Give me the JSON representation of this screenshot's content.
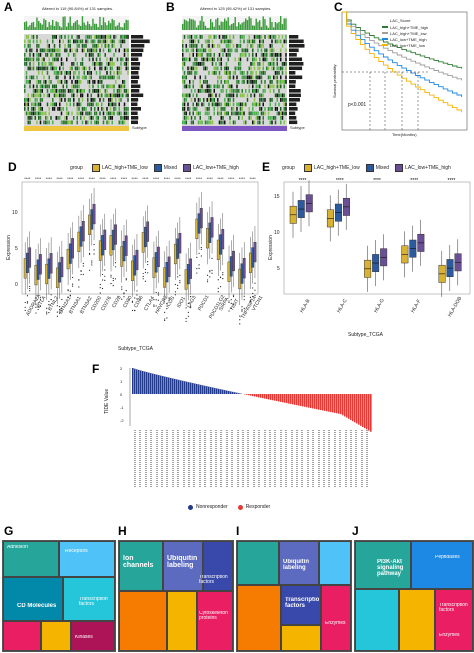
{
  "panels": {
    "A": {
      "label": "A",
      "title": "Altered in 119 (90.84%) of 131 samples.",
      "tmb_max": "13020"
    },
    "B": {
      "label": "B",
      "title": "Altered in 125 (95.42%) of 131 samples.",
      "tmb_max": "2711"
    },
    "C": {
      "label": "C",
      "legend_title": "LAC_Score",
      "legend": [
        "LAC_high+TME_high",
        "LAC_high+TME_low",
        "LAC_low+TME_high",
        "LAC_low+TME_low"
      ],
      "pval": "p<0.001",
      "xlabel": "Time(Months)",
      "ylabel": "Survival probability"
    },
    "D": {
      "label": "D",
      "legend_title": "group",
      "legend": [
        "LAC_high+TME_low",
        "Mixed",
        "LAC_low+TME_high"
      ],
      "ylabel": "Expression",
      "xlabel": "Subtype_TCGA",
      "genes": [
        "ADORA2A",
        "BTLA",
        "BTNL2",
        "BTN2A1",
        "BTN3A1",
        "BTN3A2",
        "CD200",
        "CD276",
        "CD28",
        "CD80",
        "CD86",
        "CTLA4",
        "HAVCR2",
        "ICOS",
        "IDO1",
        "LAG3",
        "PDCD1",
        "PDCD1LG2",
        "SIRPA",
        "TIGIT",
        "TNFRSF14",
        "VTCN1"
      ],
      "yticks": [
        "10",
        "5",
        "0"
      ]
    },
    "E": {
      "label": "E",
      "legend_title": "group",
      "legend": [
        "LAC_high+TME_low",
        "Mixed",
        "LAC_low+TME_high"
      ],
      "ylabel": "Expression",
      "xlabel": "Subtype_TCGA",
      "genes": [
        "HLA-B",
        "HLA-C",
        "HLA-G",
        "HLA-F",
        "HLA-DOB"
      ],
      "yticks": [
        "15",
        "10",
        "5"
      ],
      "sig": "****"
    },
    "F": {
      "label": "F",
      "ylabel": "TIDE Value",
      "legend": [
        "Nonresponder",
        "Responder"
      ],
      "yticks": [
        "2",
        "1",
        "0",
        "-1",
        "-2"
      ]
    },
    "G": {
      "label": "G"
    },
    "H": {
      "label": "H"
    },
    "I": {
      "label": "I"
    },
    "J": {
      "label": "J"
    }
  },
  "subtype_labels": {
    "A": "Subtype",
    "B": "Subtype"
  },
  "treemap_text": {
    "G": [
      "CD Molecules",
      "Transcription factors",
      "Adhesion",
      "Kinases",
      "Receptors"
    ],
    "H": [
      "Ion channels",
      "Ubiquitin labeling",
      "Transcription factors",
      "Cytoskeleton proteins"
    ],
    "I": [
      "Ubiquitin labeling",
      "Transcription factors",
      "Enzymes"
    ],
    "J": [
      "PI3K-Akt signaling pathway",
      "Peptidases",
      "Transcription factors",
      "Enzymes"
    ]
  },
  "colors": {
    "gold": "#d9b233",
    "blue": "#2c5a9e",
    "purple": "#6b4f96",
    "green": "#4caf50",
    "red": "#e53935",
    "navy": "#233a8b"
  }
}
